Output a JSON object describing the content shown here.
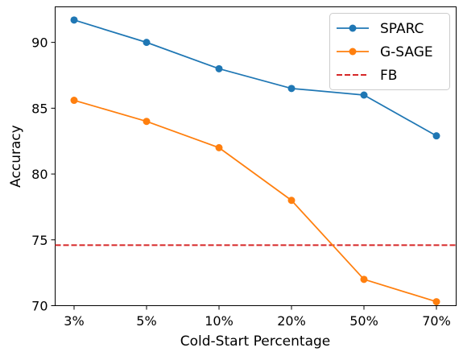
{
  "chart_data": {
    "type": "line",
    "categories": [
      "3%",
      "5%",
      "10%",
      "20%",
      "50%",
      "70%"
    ],
    "series": [
      {
        "name": "SPARC",
        "values": [
          91.7,
          90.0,
          88.0,
          86.5,
          86.0,
          82.9
        ],
        "color": "#1f77b4",
        "marker": "circle"
      },
      {
        "name": "G-SAGE",
        "values": [
          85.6,
          84.0,
          82.0,
          78.0,
          72.0,
          70.3
        ],
        "color": "#ff7f0e",
        "marker": "circle"
      }
    ],
    "reference_lines": [
      {
        "name": "FB",
        "value": 74.6,
        "color": "#d62728",
        "style": "dashed",
        "orientation": "horizontal"
      }
    ],
    "xlabel": "Cold-Start Percentage",
    "ylabel": "Accuracy",
    "ylim": [
      70,
      92.7
    ],
    "yticks": [
      70,
      75,
      80,
      85,
      90
    ],
    "grid": false,
    "legend_position": "top-right"
  }
}
